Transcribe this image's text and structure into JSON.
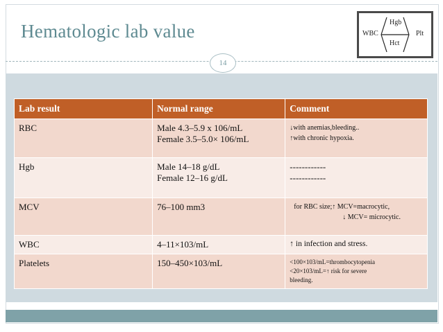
{
  "slide": {
    "title": "Hematologic lab value",
    "page_number": "14"
  },
  "logo": {
    "labels": {
      "top": "Hgb",
      "left": "WBC",
      "right": "Plt",
      "bottom": "Hct"
    }
  },
  "table": {
    "headers": [
      "Lab result",
      "Normal range",
      "Comment"
    ],
    "rows": [
      {
        "lab": "RBC",
        "range": [
          "Male   4.3–5.9 x 106/mL",
          "Female 3.5–5.0×  106/mL"
        ],
        "comment": [
          "↓with anemias,bleeding..",
          "↑with chronic hypoxia."
        ]
      },
      {
        "lab": "Hgb",
        "range": [
          "Male  14–18  g/dL",
          "Female 12–16  g/dL"
        ],
        "comment": [
          "------------",
          "------------"
        ]
      },
      {
        "lab": "MCV",
        "range": [
          " 76–100  mm3"
        ],
        "comment": [
          "for RBC  size;↑ MCV=macrocytic,",
          "↓ MCV= microcytic."
        ]
      },
      {
        "lab": "WBC",
        "range": [
          "4–11×103/mL"
        ],
        "comment": [
          "↑ in   infection   and  stress."
        ]
      },
      {
        "lab": "Platelets",
        "range": [
          "150–450×103/mL"
        ],
        "comment": [
          "<100×103/mL=thrombocytopenia",
          "<20×103/mL=↑ risk  for      severe",
          "bleeding."
        ]
      }
    ]
  },
  "colors": {
    "header_bg": "#c05f27",
    "row_odd": "#f2d8cd",
    "row_even": "#f8ece7",
    "title": "#5e8a91",
    "band": "#cfdae0",
    "bottom_bar": "#7fa2a8"
  }
}
